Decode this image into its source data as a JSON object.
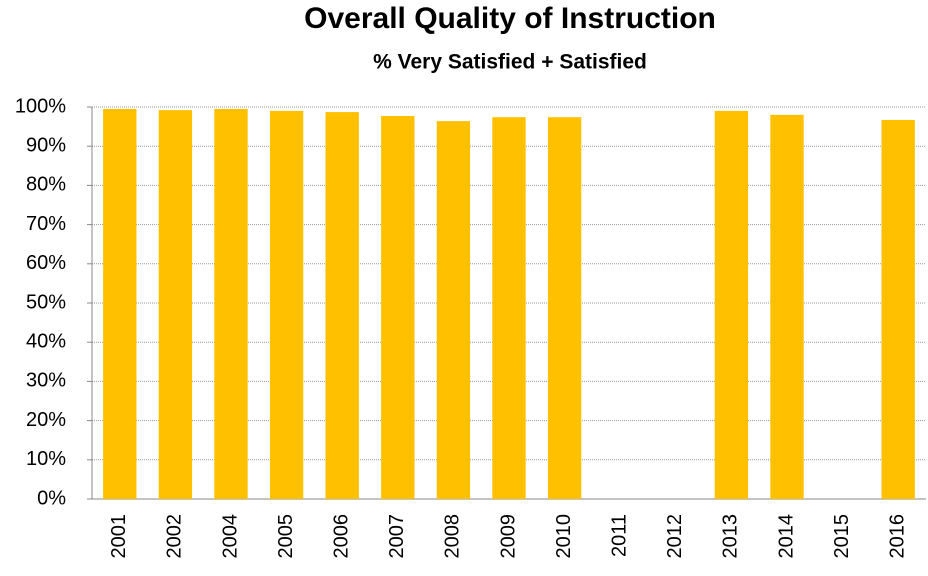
{
  "chart_data": {
    "type": "bar",
    "title": "Overall Quality of Instruction",
    "subtitle": "% Very Satisfied + Satisfied",
    "categories": [
      "2001",
      "2002",
      "2004",
      "2005",
      "2006",
      "2007",
      "2008",
      "2009",
      "2010",
      "2011",
      "2012",
      "2013",
      "2014",
      "2015",
      "2016"
    ],
    "values": [
      99.5,
      99.2,
      99.5,
      99.0,
      98.7,
      97.7,
      96.4,
      97.4,
      97.4,
      null,
      null,
      99.0,
      98.0,
      null,
      96.7
    ],
    "color": "#ffc000",
    "ylim": [
      0,
      100
    ],
    "yticks": [
      {
        "value": 0,
        "label": "0%"
      },
      {
        "value": 10,
        "label": "10%"
      },
      {
        "value": 20,
        "label": "20%"
      },
      {
        "value": 30,
        "label": "30%"
      },
      {
        "value": 40,
        "label": "40%"
      },
      {
        "value": 50,
        "label": "50%"
      },
      {
        "value": 60,
        "label": "60%"
      },
      {
        "value": 70,
        "label": "70%"
      },
      {
        "value": 80,
        "label": "80%"
      },
      {
        "value": 90,
        "label": "90%"
      },
      {
        "value": 100,
        "label": "100%"
      }
    ],
    "grid": true
  }
}
